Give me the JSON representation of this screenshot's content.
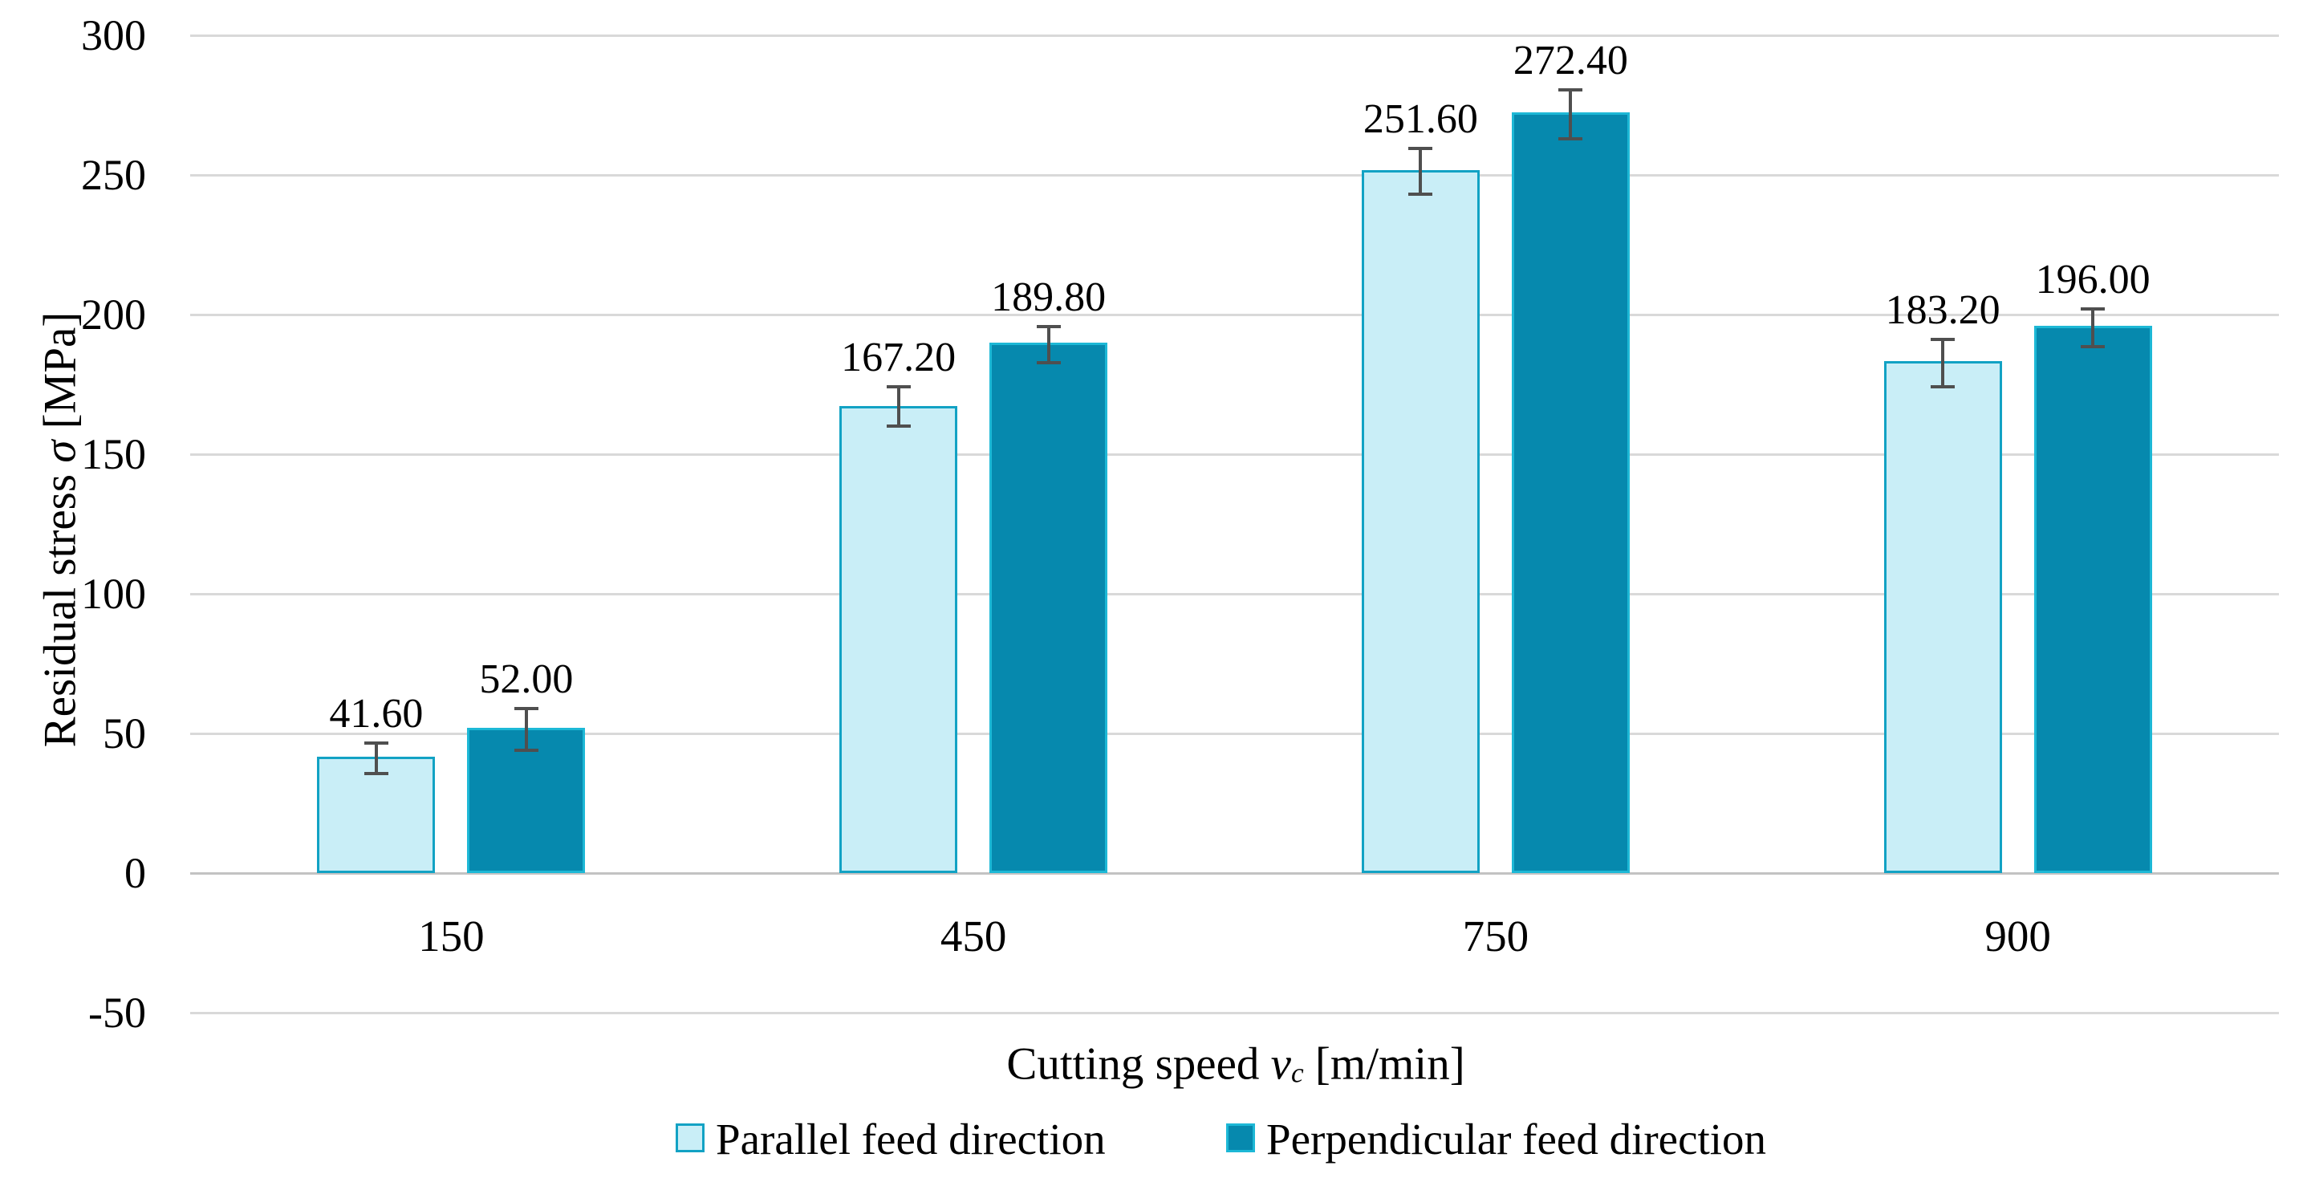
{
  "figure": {
    "background": "#ffffff",
    "text_color": "#000000"
  },
  "chart_data": {
    "type": "bar",
    "title": "",
    "categories": [
      "150",
      "450",
      "750",
      "900"
    ],
    "series": [
      {
        "name": "Parallel feed direction",
        "values": [
          41.6,
          167.2,
          251.6,
          183.2
        ],
        "value_labels": [
          "41.60",
          "167.20",
          "251.60",
          "183.20"
        ],
        "errors_plus_estimated": [
          5,
          7,
          8,
          8
        ],
        "errors_minus_estimated": [
          6,
          7,
          8.5,
          9
        ],
        "fill": "#c9eef7",
        "border": "#12a2c4"
      },
      {
        "name": "Perpendicular feed direction",
        "values": [
          52.0,
          189.8,
          272.4,
          196.0
        ],
        "value_labels": [
          "52.00",
          "189.80",
          "272.40",
          "196.00"
        ],
        "errors_plus_estimated": [
          7,
          6,
          8,
          6
        ],
        "errors_minus_estimated": [
          8,
          7,
          9.5,
          7.5
        ],
        "fill": "#0689ae",
        "border": "#1db8d6"
      }
    ],
    "xlabel": {
      "prefix": "Cutting speed ",
      "symbol": "v",
      "subscript": "c",
      "suffix": " [m/min]"
    },
    "ylabel": {
      "prefix": "Residual stress ",
      "symbol": "σ",
      "suffix": " [MPa]"
    },
    "ylim": [
      -50,
      300
    ],
    "yticks": [
      300,
      250,
      200,
      150,
      100,
      50,
      0,
      -50
    ],
    "ytick_labels": [
      "300",
      "250",
      "200",
      "150",
      "100",
      "50",
      "0",
      "-50"
    ],
    "grid": "horizontal",
    "legend_position": "bottom",
    "colors": {
      "gridline": "#d9d9d9",
      "zero_axis": "#c3c3c3",
      "error_bar": "#4f4f4f",
      "text": "#000000"
    }
  }
}
